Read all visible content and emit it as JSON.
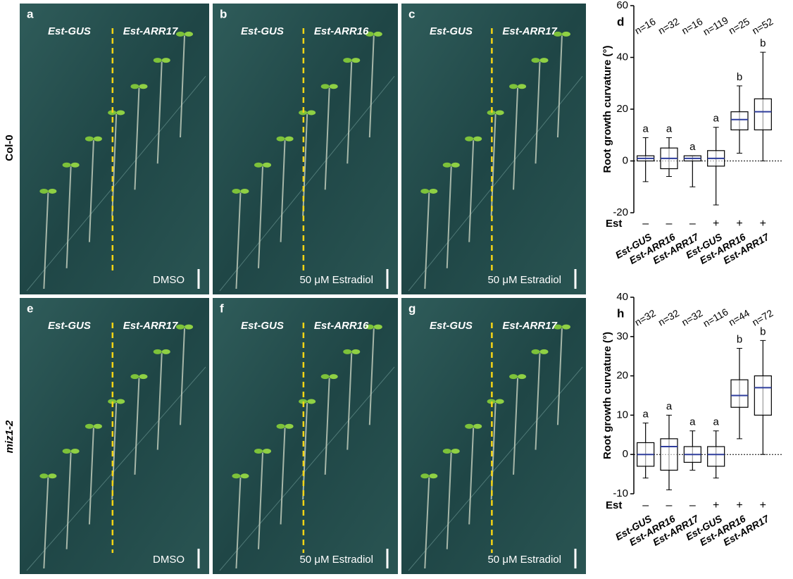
{
  "rows": [
    "Col-0",
    "miz1-2"
  ],
  "panels": [
    {
      "letter": "a",
      "left": "Est-GUS",
      "right": "Est-ARR17",
      "treatment": "DMSO"
    },
    {
      "letter": "b",
      "left": "Est-GUS",
      "right": "Est-ARR16",
      "treatment": "50 μM Estradiol"
    },
    {
      "letter": "c",
      "left": "Est-GUS",
      "right": "Est-ARR17",
      "treatment": "50 μM Estradiol"
    },
    {
      "letter": "e",
      "left": "Est-GUS",
      "right": "Est-ARR17",
      "treatment": "DMSO"
    },
    {
      "letter": "f",
      "left": "Est-GUS",
      "right": "Est-ARR16",
      "treatment": "50 μM Estradiol"
    },
    {
      "letter": "g",
      "left": "Est-GUS",
      "right": "Est-ARR17",
      "treatment": "50 μM Estradiol"
    }
  ],
  "chart_data": [
    {
      "type": "box",
      "panel_label": "d",
      "y_label": "Root growth curvature (°)",
      "est_label": "Est",
      "categories": [
        "Est-GUS",
        "Est-ARR16",
        "Est-ARR17",
        "Est-GUS",
        "Est-ARR16",
        "Est-ARR17"
      ],
      "est": [
        "–",
        "–",
        "–",
        "+",
        "+",
        "+"
      ],
      "n_labels": [
        "n=16",
        "n=32",
        "n=16",
        "n=119",
        "n=25",
        "n=52"
      ],
      "letters": [
        "a",
        "a",
        "a",
        "a",
        "b",
        "b"
      ],
      "color": "#2e3d9c",
      "hline": 0,
      "boxes": [
        {
          "min": -8,
          "q1": 0,
          "median": 1,
          "q3": 2,
          "max": 9
        },
        {
          "min": -6,
          "q1": -3,
          "median": 1,
          "q3": 5,
          "max": 9
        },
        {
          "min": -10,
          "q1": 0,
          "median": 1,
          "q3": 2,
          "max": 2
        },
        {
          "min": -17,
          "q1": -2,
          "median": 1,
          "q3": 4,
          "max": 13
        },
        {
          "min": 3,
          "q1": 12,
          "median": 16,
          "q3": 19,
          "max": 29
        },
        {
          "min": 0,
          "q1": 12,
          "median": 19,
          "q3": 24,
          "max": 42
        }
      ],
      "ylim": [
        -20,
        60
      ],
      "yticks": [
        -20,
        0,
        20,
        40,
        60
      ]
    },
    {
      "type": "box",
      "panel_label": "h",
      "y_label": "Root growth curvature (°)",
      "est_label": "Est",
      "categories": [
        "Est-GUS",
        "Est-ARR16",
        "Est-ARR17",
        "Est-GUS",
        "Est-ARR16",
        "Est-ARR17"
      ],
      "est": [
        "–",
        "–",
        "–",
        "+",
        "+",
        "+"
      ],
      "n_labels": [
        "n=32",
        "n=32",
        "n=32",
        "n=116",
        "n=44",
        "n=72"
      ],
      "letters": [
        "a",
        "a",
        "a",
        "a",
        "b",
        "b"
      ],
      "color": "#2e3d9c",
      "hline": 0,
      "boxes": [
        {
          "min": -6,
          "q1": -3,
          "median": 0,
          "q3": 3,
          "max": 8
        },
        {
          "min": -9,
          "q1": -4,
          "median": 2,
          "q3": 4,
          "max": 10
        },
        {
          "min": -4,
          "q1": -2,
          "median": 0,
          "q3": 2,
          "max": 6
        },
        {
          "min": -6,
          "q1": -3,
          "median": 0,
          "q3": 2,
          "max": 6
        },
        {
          "min": 4,
          "q1": 12,
          "median": 15,
          "q3": 19,
          "max": 27
        },
        {
          "min": 0,
          "q1": 10,
          "median": 17,
          "q3": 20,
          "max": 29
        }
      ],
      "ylim": [
        -10,
        40
      ],
      "yticks": [
        -10,
        0,
        10,
        20,
        30,
        40
      ]
    }
  ]
}
